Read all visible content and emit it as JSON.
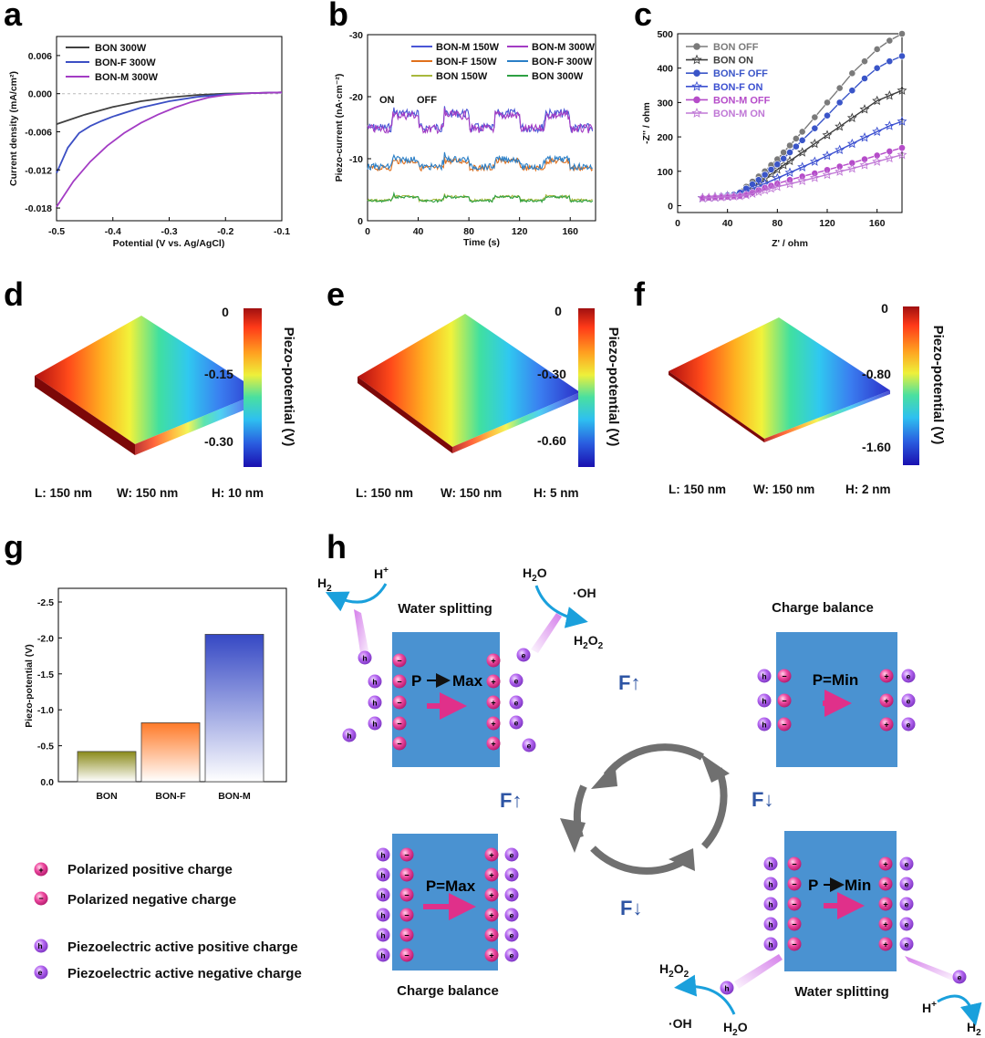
{
  "panel_letters": {
    "a": "a",
    "b": "b",
    "c": "c",
    "d": "d",
    "e": "e",
    "f": "f",
    "g": "g",
    "h": "h"
  },
  "colors": {
    "bon_300w": "#404040",
    "bon_f_300w": "#3c4fc4",
    "bon_m_300w": "#a33cc4",
    "bon_m_150w": "#4a56d6",
    "bon_f_150w": "#e0701c",
    "bon_150w": "#a8b83c",
    "bon_f_300w_b": "#2a7fc7",
    "bon_300w_b": "#2ea043",
    "bon_off": "#7a7a7a",
    "bon_on": "#3f3f3f",
    "bon_f_off": "#3a55c8",
    "bon_f_on": "#3b4fd0",
    "bon_m_off": "#b54cc9",
    "bon_m_on": "#c078d6",
    "box_blue": "#4a92d1",
    "pink": "#e0308a",
    "purple": "#a65be0",
    "arrow_cyan": "#1aa0dc",
    "cycle_grey": "#707070",
    "force_blue": "#2e55a4"
  },
  "chart_data": [
    {
      "id": "a",
      "type": "line",
      "xlabel": "Potential (V vs. Ag/AgCl)",
      "ylabel": "Current density (mA/cm²)",
      "xlim": [
        -0.5,
        -0.1
      ],
      "ylim": [
        -0.02,
        0.009
      ],
      "xticks": [
        -0.5,
        -0.4,
        -0.3,
        -0.2,
        -0.1
      ],
      "xtick_labels": [
        "-0.5",
        "-0.4",
        "-0.3",
        "-0.2",
        "-0.1"
      ],
      "yticks": [
        0.006,
        0.0,
        -0.006,
        -0.012,
        -0.018
      ],
      "ytick_labels": [
        "0.006",
        "0.000",
        "-0.006",
        "-0.012",
        "-0.018"
      ],
      "series": [
        {
          "name": "BON 300W",
          "x": [
            -0.5,
            -0.45,
            -0.4,
            -0.35,
            -0.3,
            -0.25,
            -0.2,
            -0.15,
            -0.1
          ],
          "values": [
            -0.0048,
            -0.0033,
            -0.0021,
            -0.0012,
            -0.0006,
            -0.0002,
            0.0,
            0.0001,
            0.0002
          ]
        },
        {
          "name": "BON-F 300W",
          "x": [
            -0.5,
            -0.48,
            -0.46,
            -0.44,
            -0.42,
            -0.4,
            -0.35,
            -0.3,
            -0.25,
            -0.2,
            -0.15,
            -0.1
          ],
          "values": [
            -0.0125,
            -0.0085,
            -0.0062,
            -0.0051,
            -0.0043,
            -0.0036,
            -0.0022,
            -0.0012,
            -0.0005,
            -0.0001,
            0.0001,
            0.0002
          ]
        },
        {
          "name": "BON-M 300W",
          "x": [
            -0.5,
            -0.47,
            -0.44,
            -0.41,
            -0.38,
            -0.35,
            -0.32,
            -0.29,
            -0.26,
            -0.23,
            -0.2,
            -0.15,
            -0.1
          ],
          "values": [
            -0.0178,
            -0.0138,
            -0.0107,
            -0.0082,
            -0.0062,
            -0.0046,
            -0.0033,
            -0.0022,
            -0.0013,
            -0.0006,
            -0.0002,
            0.0001,
            0.0002
          ]
        }
      ]
    },
    {
      "id": "b",
      "type": "line",
      "xlabel": "Time (s)",
      "ylabel": "Piezo-current (nA·cm⁻²)",
      "xlim": [
        0,
        180
      ],
      "ylim": [
        0,
        -30
      ],
      "xticks": [
        0,
        40,
        80,
        120,
        160
      ],
      "xtick_labels": [
        "0",
        "40",
        "80",
        "120",
        "160"
      ],
      "yticks": [
        -30,
        -20,
        -10,
        0
      ],
      "ytick_labels": [
        "-30",
        "-20",
        "-10",
        "0"
      ],
      "on_windows": [
        [
          20,
          40
        ],
        [
          60,
          80
        ],
        [
          100,
          120
        ],
        [
          140,
          160
        ]
      ],
      "annotations": {
        "on": "ON",
        "off": "OFF"
      },
      "series": [
        {
          "name": "BON-M 150W",
          "off": -15.0,
          "on": -17.3,
          "noise": 0.7
        },
        {
          "name": "BON-M 300W",
          "off": -14.8,
          "on": -17.0,
          "noise": 0.7
        },
        {
          "name": "BON-F 150W",
          "off": -8.5,
          "on": -9.6,
          "noise": 0.45
        },
        {
          "name": "BON-F 300W",
          "off": -8.7,
          "on": -9.9,
          "noise": 0.5
        },
        {
          "name": "BON 150W",
          "off": -3.3,
          "on": -3.9,
          "noise": 0.2
        },
        {
          "name": "BON 300W",
          "off": -3.2,
          "on": -3.8,
          "noise": 0.2
        }
      ]
    },
    {
      "id": "c",
      "type": "scatter",
      "xlabel": "Z' / ohm",
      "ylabel": "-Z'' / ohm",
      "xlim": [
        0,
        180
      ],
      "ylim": [
        -20,
        500
      ],
      "xticks": [
        0,
        40,
        80,
        120,
        160
      ],
      "xtick_labels": [
        "0",
        "40",
        "80",
        "120",
        "160"
      ],
      "yticks": [
        0,
        100,
        200,
        300,
        400,
        500
      ],
      "ytick_labels": [
        "0",
        "100",
        "200",
        "300",
        "400",
        "500"
      ],
      "series": [
        {
          "name": "BON OFF",
          "marker": "circle",
          "x": [
            20,
            25,
            30,
            35,
            40,
            45,
            50,
            55,
            60,
            65,
            70,
            75,
            80,
            85,
            90,
            95,
            100,
            110,
            120,
            130,
            140,
            150,
            160,
            170,
            180
          ],
          "values": [
            22,
            24,
            26,
            28,
            30,
            33,
            40,
            55,
            70,
            85,
            100,
            118,
            135,
            155,
            175,
            195,
            215,
            257,
            300,
            342,
            385,
            420,
            455,
            480,
            500
          ]
        },
        {
          "name": "BON ON",
          "marker": "star",
          "x": [
            20,
            30,
            40,
            50,
            55,
            60,
            65,
            70,
            75,
            80,
            85,
            90,
            100,
            110,
            120,
            130,
            140,
            150,
            160,
            170,
            180
          ],
          "values": [
            22,
            25,
            28,
            34,
            45,
            56,
            68,
            80,
            92,
            105,
            118,
            130,
            155,
            180,
            205,
            230,
            255,
            280,
            305,
            320,
            335
          ]
        },
        {
          "name": "BON-F OFF",
          "marker": "circle",
          "x": [
            20,
            25,
            30,
            35,
            40,
            45,
            50,
            55,
            60,
            65,
            70,
            75,
            80,
            85,
            90,
            95,
            100,
            110,
            120,
            130,
            140,
            150,
            160,
            170,
            180
          ],
          "values": [
            22,
            24,
            26,
            28,
            30,
            32,
            38,
            50,
            62,
            75,
            90,
            105,
            120,
            137,
            155,
            172,
            190,
            225,
            262,
            300,
            335,
            370,
            400,
            420,
            435
          ]
        },
        {
          "name": "BON-F ON",
          "marker": "star",
          "x": [
            20,
            30,
            40,
            50,
            55,
            60,
            65,
            70,
            80,
            90,
            100,
            110,
            120,
            130,
            140,
            150,
            160,
            170,
            180
          ],
          "values": [
            22,
            24,
            27,
            32,
            40,
            48,
            56,
            64,
            80,
            96,
            112,
            128,
            145,
            162,
            180,
            198,
            215,
            232,
            245
          ]
        },
        {
          "name": "BON-M OFF",
          "marker": "circle",
          "x": [
            20,
            25,
            30,
            35,
            40,
            45,
            50,
            55,
            60,
            65,
            70,
            75,
            80,
            90,
            100,
            110,
            120,
            130,
            140,
            150,
            160,
            170,
            180
          ],
          "values": [
            22,
            23,
            24,
            25,
            26,
            27,
            28,
            32,
            38,
            45,
            52,
            58,
            64,
            75,
            85,
            94,
            104,
            114,
            124,
            135,
            146,
            158,
            168
          ]
        },
        {
          "name": "BON-M ON",
          "marker": "star",
          "x": [
            20,
            25,
            30,
            35,
            40,
            45,
            50,
            55,
            60,
            65,
            70,
            75,
            80,
            90,
            100,
            110,
            120,
            130,
            140,
            150,
            160,
            170,
            180
          ],
          "values": [
            22,
            23,
            24,
            25,
            26,
            27,
            28,
            31,
            35,
            40,
            45,
            50,
            55,
            63,
            72,
            81,
            90,
            99,
            108,
            118,
            128,
            138,
            148
          ]
        }
      ]
    },
    {
      "id": "g",
      "type": "bar",
      "ylabel": "Piezo-potential (V)",
      "categories": [
        "BON",
        "BON-F",
        "BON-M"
      ],
      "values": [
        -0.42,
        -0.82,
        -2.05
      ],
      "ylim": [
        0,
        -2.5
      ],
      "yticks": [
        -2.5,
        -2.0,
        -1.5,
        -1.0,
        -0.5,
        0.0
      ],
      "ytick_labels": [
        "-2.5",
        "-2.0",
        "-1.5",
        "-1.0",
        "-0.5",
        "0.0"
      ]
    }
  ],
  "fields": {
    "ylabel": "Piezo-potential (V)",
    "d": {
      "ticks": [
        "0",
        "-0.15",
        "-0.30"
      ],
      "L": "L: 150 nm",
      "W": "W: 150 nm",
      "H": "H: 10 nm"
    },
    "e": {
      "ticks": [
        "0",
        "-0.30",
        "-0.60"
      ],
      "L": "L: 150 nm",
      "W": "W: 150 nm",
      "H": "H: 5 nm"
    },
    "f": {
      "ticks": [
        "0",
        "-0.80",
        "-1.60"
      ],
      "L": "L: 150 nm",
      "W": "W: 150 nm",
      "H": "H: 2 nm"
    }
  },
  "schematic": {
    "titles": {
      "water_splitting_1": "Water splitting",
      "charge_balance_1": "Charge balance",
      "charge_balance_2": "Charge balance",
      "water_splitting_2": "Water splitting"
    },
    "box_labels": {
      "p": "P",
      "max": "Max",
      "p_min_eq": "P=Min",
      "p_max_eq": "P=Max",
      "min": "Min"
    },
    "species": {
      "h2": "H",
      "hplus": "H",
      "h2o": "H",
      "oh": "·OH",
      "h2o2": "H",
      "sub2": "2",
      "sub_o": "O",
      "plus": "+",
      "minus": "−",
      "h": "h",
      "e": "e"
    },
    "forces": {
      "up": "F↑",
      "down": "F↓"
    }
  },
  "legend": {
    "positive": "Polarized positive charge",
    "negative": "Polarized negative charge",
    "active_positive": "Piezoelectric active positive charge",
    "active_negative": "Piezoelectric active negative charge"
  }
}
